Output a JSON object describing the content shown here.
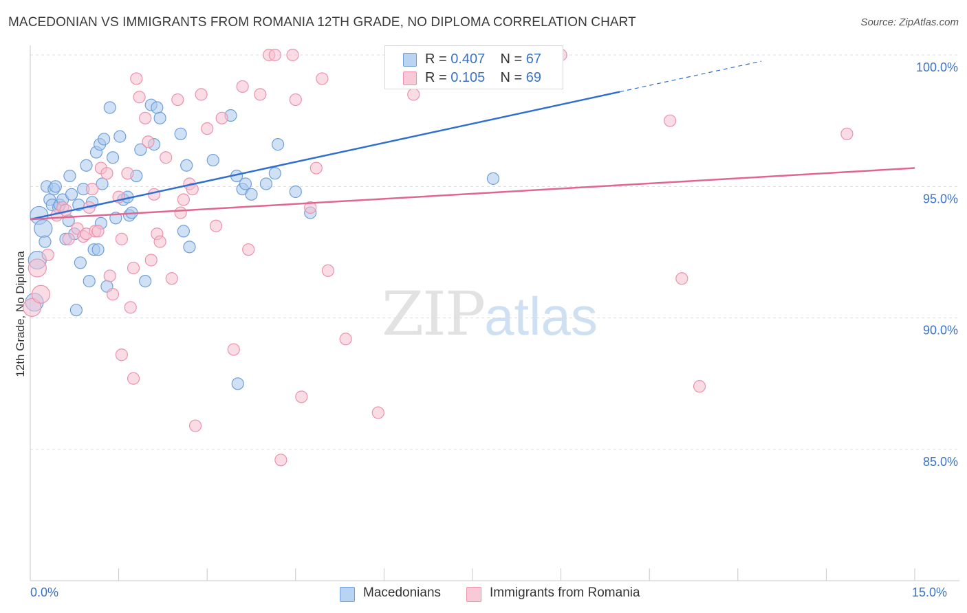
{
  "title": "MACEDONIAN VS IMMIGRANTS FROM ROMANIA 12TH GRADE, NO DIPLOMA CORRELATION CHART",
  "source": "Source: ZipAtlas.com",
  "watermark": {
    "zip": "ZIP",
    "atlas": "atlas"
  },
  "legend_top": {
    "rows": [
      {
        "r_label": "R = ",
        "r_value": "0.407",
        "n_label": "N = ",
        "n_value": "67"
      },
      {
        "r_label": "R = ",
        "r_value": "0.105",
        "n_label": "N = ",
        "n_value": "69"
      }
    ]
  },
  "colors": {
    "macedonians_fill": "#a9c8ef",
    "macedonians_stroke": "#6f9fd8",
    "macedonians_line": "#2e6fd0",
    "romania_fill": "#f6bfd0",
    "romania_stroke": "#ec91ae",
    "romania_line": "#e06690",
    "axis_text": "#3a73c6",
    "grid": "#dcdcdc"
  },
  "chart_data": {
    "type": "scatter",
    "title": "MACEDONIAN VS IMMIGRANTS FROM ROMANIA 12TH GRADE, NO DIPLOMA CORRELATION CHART",
    "xlabel": "",
    "ylabel": "12th Grade, No Diploma",
    "xlim": [
      0,
      15
    ],
    "ylim": [
      80.5,
      100.4
    ],
    "x_tick_labels": [
      "0.0%",
      "15.0%"
    ],
    "y_tick_values": [
      85,
      90,
      95,
      100
    ],
    "y_tick_labels": [
      "85.0%",
      "90.0%",
      "95.0%",
      "100.0%"
    ],
    "grid": true,
    "legend_placement": "bottom",
    "series": [
      {
        "name": "Macedonians",
        "r": 0.407,
        "n": 67,
        "trend": {
          "x0": 0.0,
          "y0": 93.75,
          "x1": 10.0,
          "y1": 98.6,
          "dashed_to_x": 12.4
        },
        "points": [
          [
            0.07,
            90.6
          ],
          [
            0.12,
            92.2
          ],
          [
            0.15,
            93.9
          ],
          [
            0.22,
            93.4
          ],
          [
            0.25,
            92.9
          ],
          [
            0.28,
            95.0
          ],
          [
            0.33,
            94.5
          ],
          [
            0.37,
            94.3
          ],
          [
            0.4,
            94.9
          ],
          [
            0.43,
            95.0
          ],
          [
            0.48,
            94.2
          ],
          [
            0.5,
            94.3
          ],
          [
            0.55,
            94.5
          ],
          [
            0.6,
            93.0
          ],
          [
            0.65,
            93.7
          ],
          [
            0.67,
            95.4
          ],
          [
            0.7,
            94.7
          ],
          [
            0.75,
            93.2
          ],
          [
            0.78,
            90.3
          ],
          [
            0.82,
            94.3
          ],
          [
            0.85,
            92.1
          ],
          [
            0.9,
            94.9
          ],
          [
            0.95,
            95.8
          ],
          [
            1.0,
            91.4
          ],
          [
            1.05,
            94.4
          ],
          [
            1.08,
            92.6
          ],
          [
            1.12,
            96.3
          ],
          [
            1.15,
            92.6
          ],
          [
            1.18,
            96.6
          ],
          [
            1.22,
            95.1
          ],
          [
            1.25,
            96.8
          ],
          [
            1.3,
            91.2
          ],
          [
            1.35,
            98.0
          ],
          [
            1.4,
            96.1
          ],
          [
            1.45,
            93.8
          ],
          [
            1.52,
            96.9
          ],
          [
            1.58,
            94.5
          ],
          [
            1.65,
            94.6
          ],
          [
            1.68,
            93.9
          ],
          [
            1.72,
            94.0
          ],
          [
            1.8,
            95.4
          ],
          [
            1.87,
            96.4
          ],
          [
            1.95,
            91.4
          ],
          [
            2.05,
            98.1
          ],
          [
            2.1,
            96.6
          ],
          [
            2.15,
            98.0
          ],
          [
            2.2,
            97.6
          ],
          [
            2.55,
            97.0
          ],
          [
            2.6,
            93.3
          ],
          [
            2.65,
            95.8
          ],
          [
            2.7,
            92.7
          ],
          [
            3.1,
            96.0
          ],
          [
            3.4,
            97.7
          ],
          [
            3.5,
            95.4
          ],
          [
            3.52,
            87.5
          ],
          [
            3.6,
            94.9
          ],
          [
            3.65,
            95.1
          ],
          [
            3.75,
            94.7
          ],
          [
            4.0,
            95.1
          ],
          [
            4.15,
            95.5
          ],
          [
            4.2,
            96.6
          ],
          [
            4.5,
            94.8
          ],
          [
            4.75,
            94.0
          ],
          [
            7.2,
            99.0
          ],
          [
            7.35,
            100.0
          ],
          [
            7.85,
            95.3
          ],
          [
            1.2,
            93.6
          ]
        ]
      },
      {
        "name": "Immigrants from Romania",
        "r": 0.105,
        "n": 69,
        "trend": {
          "x0": 0.0,
          "y0": 93.75,
          "x1": 15.0,
          "y1": 95.7
        },
        "points": [
          [
            0.03,
            90.4
          ],
          [
            0.12,
            91.9
          ],
          [
            0.18,
            90.9
          ],
          [
            0.3,
            92.4
          ],
          [
            0.45,
            93.9
          ],
          [
            0.55,
            94.2
          ],
          [
            0.6,
            94.1
          ],
          [
            0.65,
            93.0
          ],
          [
            0.8,
            93.4
          ],
          [
            0.9,
            93.1
          ],
          [
            0.95,
            93.2
          ],
          [
            1.0,
            94.2
          ],
          [
            1.05,
            94.9
          ],
          [
            1.1,
            93.3
          ],
          [
            1.15,
            93.3
          ],
          [
            1.2,
            95.7
          ],
          [
            1.3,
            95.5
          ],
          [
            1.35,
            91.6
          ],
          [
            1.4,
            90.9
          ],
          [
            1.5,
            94.6
          ],
          [
            1.55,
            93.0
          ],
          [
            1.65,
            95.5
          ],
          [
            1.7,
            90.4
          ],
          [
            1.75,
            91.9
          ],
          [
            1.8,
            99.1
          ],
          [
            1.85,
            98.4
          ],
          [
            1.95,
            97.6
          ],
          [
            2.0,
            96.7
          ],
          [
            2.05,
            92.2
          ],
          [
            2.1,
            94.7
          ],
          [
            2.15,
            93.2
          ],
          [
            2.2,
            92.9
          ],
          [
            2.3,
            96.1
          ],
          [
            2.4,
            91.5
          ],
          [
            2.5,
            98.3
          ],
          [
            2.55,
            94.0
          ],
          [
            2.6,
            94.5
          ],
          [
            2.7,
            95.1
          ],
          [
            2.75,
            94.9
          ],
          [
            2.8,
            85.9
          ],
          [
            2.9,
            98.5
          ],
          [
            3.0,
            97.2
          ],
          [
            3.15,
            93.5
          ],
          [
            3.25,
            97.6
          ],
          [
            3.45,
            88.8
          ],
          [
            3.6,
            98.8
          ],
          [
            3.7,
            92.6
          ],
          [
            3.9,
            98.5
          ],
          [
            4.05,
            100.0
          ],
          [
            4.15,
            100.0
          ],
          [
            4.25,
            84.6
          ],
          [
            4.45,
            100.0
          ],
          [
            4.5,
            98.3
          ],
          [
            4.6,
            87.0
          ],
          [
            4.75,
            94.2
          ],
          [
            4.85,
            95.7
          ],
          [
            4.95,
            99.1
          ],
          [
            5.05,
            91.8
          ],
          [
            5.35,
            89.2
          ],
          [
            5.9,
            86.4
          ],
          [
            6.5,
            98.5
          ],
          [
            8.25,
            100.0
          ],
          [
            9.0,
            100.0
          ],
          [
            10.85,
            97.5
          ],
          [
            11.05,
            91.5
          ],
          [
            11.35,
            87.4
          ],
          [
            13.85,
            97.0
          ],
          [
            1.75,
            87.7
          ],
          [
            1.55,
            88.6
          ]
        ]
      }
    ]
  }
}
